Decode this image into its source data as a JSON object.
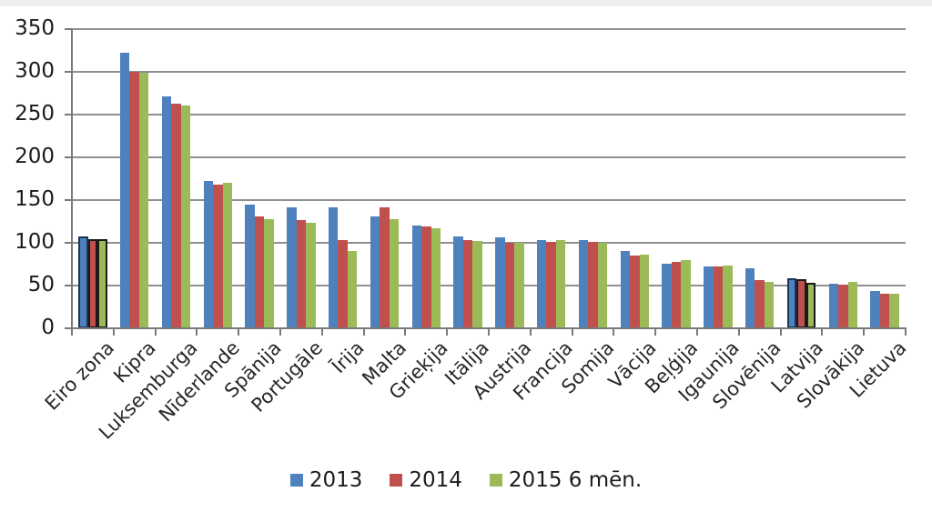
{
  "chart_data": {
    "type": "bar",
    "title": "",
    "xlabel": "",
    "ylabel": "",
    "ylim": [
      0,
      350
    ],
    "yticks": [
      0,
      50,
      100,
      150,
      200,
      250,
      300,
      350
    ],
    "grid": true,
    "legend_position": "bottom",
    "categories": [
      "Eiro zona",
      "Kipra",
      "Luksemburga",
      "Nīderlande",
      "Spānija",
      "Portugāle",
      "Īrija",
      "Malta",
      "Grieķija",
      "Itālija",
      "Austrija",
      "Francija",
      "Somija",
      "Vācija",
      "Beļģija",
      "Igaunija",
      "Slovēnija",
      "Latvija",
      "Slovākija",
      "Lietuva"
    ],
    "series": [
      {
        "name": "2013",
        "color": "#4F81BD",
        "values": [
          107,
          322,
          271,
          172,
          145,
          142,
          142,
          131,
          120,
          107,
          106,
          103,
          103,
          90,
          76,
          72,
          70,
          59,
          52,
          44
        ]
      },
      {
        "name": "2014",
        "color": "#C0504D",
        "values": [
          104,
          300,
          263,
          168,
          131,
          127,
          103,
          142,
          119,
          103,
          100,
          101,
          101,
          85,
          78,
          72,
          56,
          57,
          51,
          40
        ]
      },
      {
        "name": "2015 6 mēn.",
        "color": "#9BBB59",
        "values": [
          104,
          299,
          261,
          170,
          128,
          123,
          90,
          128,
          117,
          102,
          100,
          103,
          100,
          86,
          80,
          73,
          54,
          53,
          54,
          41
        ]
      }
    ],
    "highlighted_categories": [
      "Eiro zona",
      "Latvija"
    ],
    "highlight_border_colors": [
      "#17375E",
      "#1a1a1a",
      "#1a1a1a"
    ]
  },
  "style": {
    "gridline_color": "#8f8f8f",
    "axis_color": "#7a7a7a",
    "tick_color": "#7a7a7a",
    "background": "#ffffff"
  }
}
